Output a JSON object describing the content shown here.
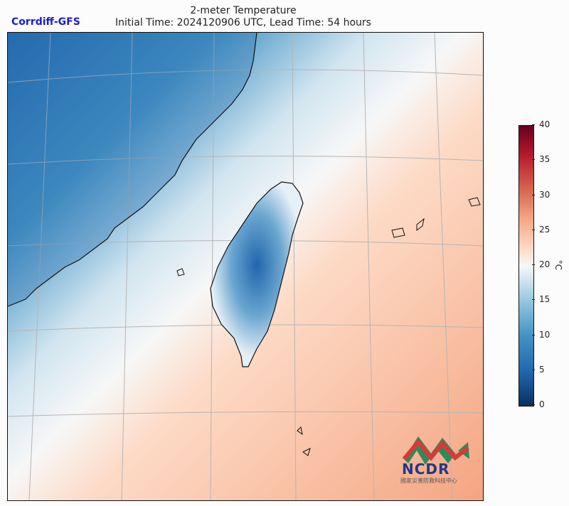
{
  "brand": "Corrdiff-GFS",
  "title": "2-meter Temperature",
  "subtitle": "Initial Time: 2024120906 UTC, Lead Time: 54 hours",
  "colorbar": {
    "unit": "°C",
    "ticks": [
      "40",
      "35",
      "30",
      "25",
      "20",
      "15",
      "10",
      "5",
      "0"
    ],
    "range": [
      0,
      40
    ],
    "colormap": "RdBu_r"
  },
  "logo": {
    "name": "NCDR",
    "subtitle": "國家災害防救科技中心"
  },
  "colors": {
    "cold": "#2166ac",
    "warm": "#f4a582",
    "neutral": "#f7f7f7",
    "brand": "#1a1ad6"
  }
}
